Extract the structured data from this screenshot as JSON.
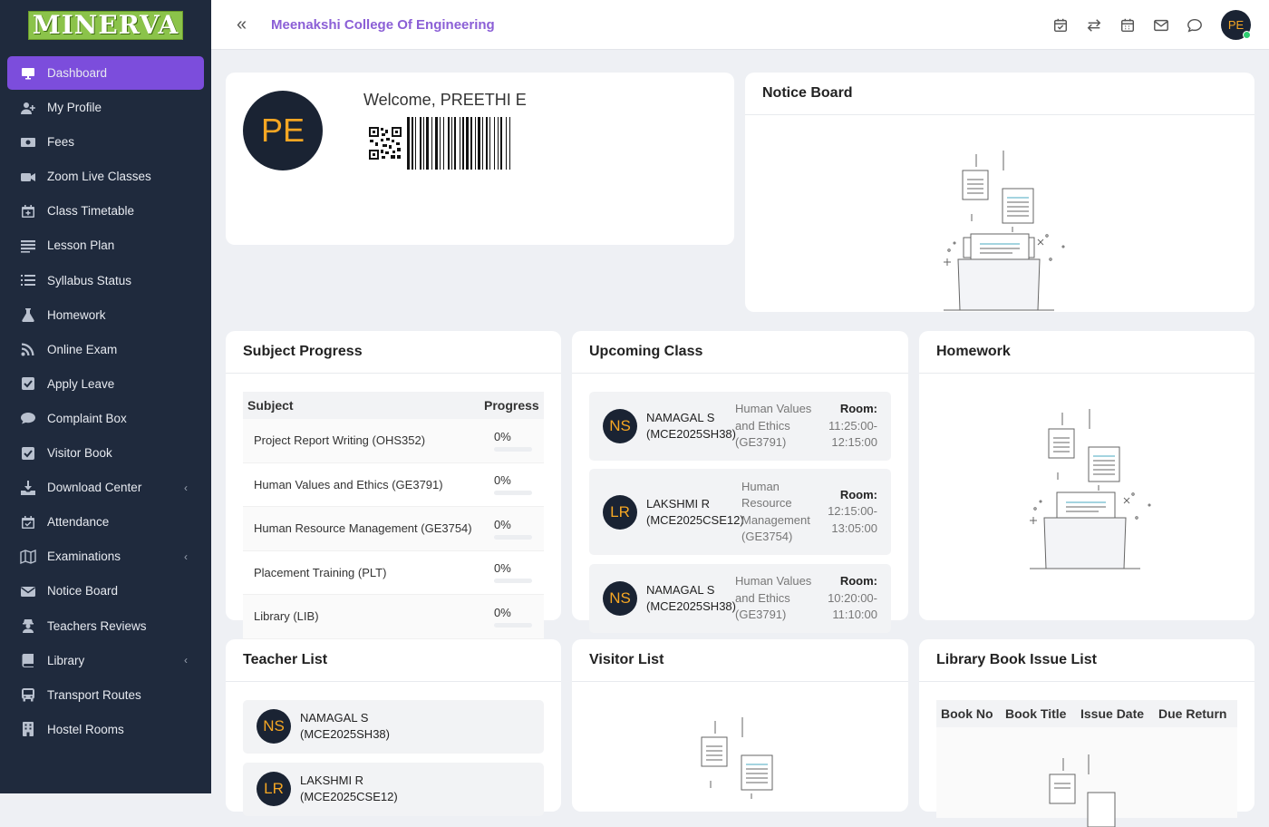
{
  "app": {
    "logo_text": "MINERVA",
    "college_name": "Meenakshi College Of Engineering",
    "user_initials": "PE",
    "accent_color": "#7c4ddc"
  },
  "sidebar": {
    "items": [
      {
        "label": "Dashboard",
        "icon": "monitor-icon",
        "active": true
      },
      {
        "label": "My Profile",
        "icon": "user-plus-icon"
      },
      {
        "label": "Fees",
        "icon": "money-icon"
      },
      {
        "label": "Zoom Live Classes",
        "icon": "video-icon"
      },
      {
        "label": "Class Timetable",
        "icon": "calendar-plus-icon"
      },
      {
        "label": "Lesson Plan",
        "icon": "list-icon"
      },
      {
        "label": "Syllabus Status",
        "icon": "list-numbered-icon"
      },
      {
        "label": "Homework",
        "icon": "flask-icon"
      },
      {
        "label": "Online Exam",
        "icon": "rss-icon"
      },
      {
        "label": "Apply Leave",
        "icon": "check-square-icon"
      },
      {
        "label": "Complaint Box",
        "icon": "comment-icon"
      },
      {
        "label": "Visitor Book",
        "icon": "check-square-icon"
      },
      {
        "label": "Download Center",
        "icon": "download-icon",
        "submenu": true
      },
      {
        "label": "Attendance",
        "icon": "calendar-check-icon"
      },
      {
        "label": "Examinations",
        "icon": "map-icon",
        "submenu": true
      },
      {
        "label": "Notice Board",
        "icon": "envelope-icon"
      },
      {
        "label": "Teachers Reviews",
        "icon": "user-secret-icon"
      },
      {
        "label": "Library",
        "icon": "book-icon",
        "submenu": true
      },
      {
        "label": "Transport Routes",
        "icon": "bus-icon"
      },
      {
        "label": "Hostel Rooms",
        "icon": "building-icon"
      }
    ]
  },
  "header_icons": [
    "calendar-check-icon",
    "exchange-icon",
    "calendar-icon",
    "envelope-icon",
    "chat-icon"
  ],
  "welcome": {
    "text": "Welcome, PREETHI E",
    "initials": "PE"
  },
  "notice_board": {
    "title": "Notice Board"
  },
  "subject_progress": {
    "title": "Subject Progress",
    "columns": [
      "Subject",
      "Progress"
    ],
    "rows": [
      {
        "subject": "Project Report Writing (OHS352)",
        "progress": "0%",
        "fraction": 0
      },
      {
        "subject": "Human Values and Ethics (GE3791)",
        "progress": "0%",
        "fraction": 0
      },
      {
        "subject": "Human Resource Management (GE3754)",
        "progress": "0%",
        "fraction": 0
      },
      {
        "subject": "Placement Training (PLT)",
        "progress": "0%",
        "fraction": 0
      },
      {
        "subject": "Library (LIB)",
        "progress": "0%",
        "fraction": 0
      }
    ]
  },
  "upcoming_class": {
    "title": "Upcoming Class",
    "items": [
      {
        "initials": "NS",
        "name": "NAMAGAL S",
        "code": "(MCE2025SH38)",
        "subject": [
          "Human Values",
          "and Ethics",
          "(GE3791)"
        ],
        "room_label": "Room:",
        "time": [
          "11:25:00-",
          "12:15:00"
        ]
      },
      {
        "initials": "LR",
        "name": "LAKSHMI R",
        "code": "(MCE2025CSE12)",
        "subject": [
          "Human",
          "Resource",
          "Management",
          "(GE3754)"
        ],
        "room_label": "Room:",
        "time": [
          "12:15:00-",
          "13:05:00"
        ]
      },
      {
        "initials": "NS",
        "name": "NAMAGAL S",
        "code": "(MCE2025SH38)",
        "subject": [
          "Human Values",
          "and Ethics",
          "(GE3791)"
        ],
        "room_label": "Room:",
        "time": [
          "10:20:00-",
          "11:10:00"
        ]
      }
    ]
  },
  "homework": {
    "title": "Homework"
  },
  "teacher_list": {
    "title": "Teacher List",
    "items": [
      {
        "initials": "NS",
        "name": "NAMAGAL S",
        "code": "(MCE2025SH38)"
      },
      {
        "initials": "LR",
        "name": "LAKSHMI R",
        "code": "(MCE2025CSE12)"
      }
    ]
  },
  "visitor_list": {
    "title": "Visitor List"
  },
  "library_issue": {
    "title": "Library Book Issue List",
    "columns": [
      "Book No",
      "Book Title",
      "Issue Date",
      "Due Return"
    ]
  }
}
